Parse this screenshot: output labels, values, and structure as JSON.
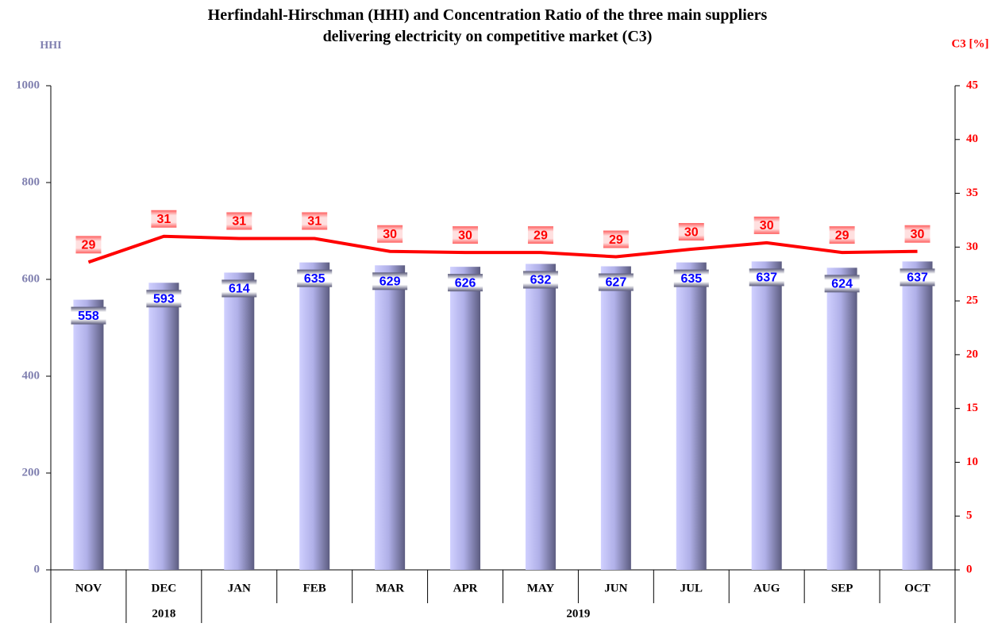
{
  "chart_data": {
    "type": "bar",
    "title": "Herfindahl-Hirschman (HHI) and Concentration Ratio of the three main suppliers delivering electricity on competitive market (C3)",
    "ylabel": "HHI",
    "y2label": "C3 [%]",
    "categories": [
      "NOV",
      "DEC",
      "JAN",
      "FEB",
      "MAR",
      "APR",
      "MAY",
      "JUN",
      "JUL",
      "AUG",
      "SEP",
      "OCT"
    ],
    "groups": [
      {
        "label": "2018",
        "span": [
          1,
          1
        ]
      },
      {
        "label": "2019",
        "span": [
          2,
          11
        ]
      }
    ],
    "series": [
      {
        "type": "bar",
        "color": "#b4b4e8",
        "values": [
          558,
          593,
          614,
          635,
          629,
          626,
          632,
          627,
          635,
          637,
          624,
          637
        ]
      },
      {
        "type": "line",
        "axis": "y2",
        "color": "#ff0000",
        "values": [
          28.6,
          31,
          30.8,
          30.8,
          29.6,
          29.5,
          29.5,
          29.1,
          29.8,
          30.4,
          29.5,
          29.6
        ],
        "value_labels": [
          "29",
          "31",
          "31",
          "31",
          "30",
          "30",
          "29",
          "29",
          "30",
          "30",
          "29",
          "30"
        ]
      }
    ],
    "ylim": [
      0,
      1000
    ],
    "yticks": [
      0,
      200,
      400,
      600,
      800,
      1000
    ],
    "y2lim": [
      0,
      45
    ],
    "y2ticks": [
      0,
      5,
      10,
      15,
      20,
      25,
      30,
      35,
      40,
      45
    ]
  }
}
